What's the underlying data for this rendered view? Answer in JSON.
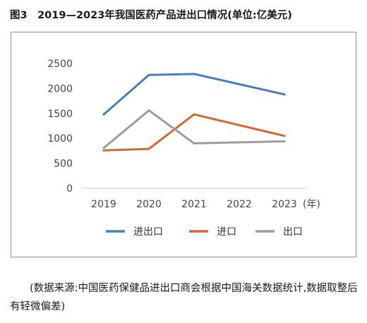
{
  "figure_title": "图3　2019—2023年我国医药产品进出口情况(单位:亿美元)",
  "source_note": "(数据来源:中国医药保健品进出口商会根据中国海关数据统计,数据取整后有轻微偏差)",
  "colors": {
    "series_import_export": "#4a7ebb",
    "series_import": "#d06a2e",
    "series_export": "#9d9d9d",
    "frame": "#8e8e8e"
  },
  "chart_data": {
    "type": "line",
    "title": "",
    "xlabel": "(年)",
    "ylabel": "",
    "categories": [
      "2019",
      "2020",
      "2021",
      "2022",
      "2023"
    ],
    "y_ticks": [
      "2500",
      "2000",
      "1500",
      "1000",
      "500",
      "0"
    ],
    "ylim": [
      0,
      2500
    ],
    "grid": false,
    "legend_position": "bottom",
    "series": [
      {
        "name": "进出口",
        "color": "#4a7ebb",
        "values": [
          1480,
          2270,
          2290,
          null,
          1880
        ]
      },
      {
        "name": "进口",
        "color": "#d06a2e",
        "values": [
          760,
          790,
          1480,
          null,
          1050
        ]
      },
      {
        "name": "出口",
        "color": "#9d9d9d",
        "values": [
          810,
          1560,
          900,
          null,
          940
        ]
      }
    ]
  }
}
